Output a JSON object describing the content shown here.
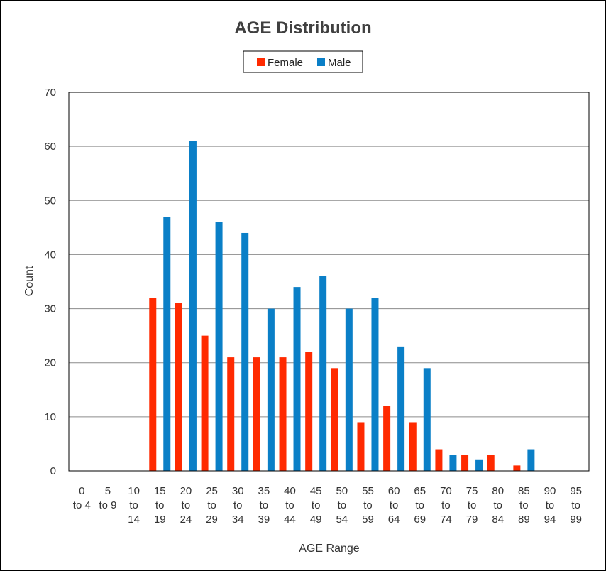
{
  "chart_data": {
    "type": "bar",
    "title": "AGE Distribution",
    "xlabel": "AGE Range",
    "ylabel": "Count",
    "ylim": [
      0,
      70
    ],
    "yticks": [
      0,
      10,
      20,
      30,
      40,
      50,
      60,
      70
    ],
    "grid": true,
    "legend_position": "top",
    "categories": [
      [
        "0",
        "to 4"
      ],
      [
        "5",
        "to 9"
      ],
      [
        "10",
        "to",
        "14"
      ],
      [
        "15",
        "to",
        "19"
      ],
      [
        "20",
        "to",
        "24"
      ],
      [
        "25",
        "to",
        "29"
      ],
      [
        "30",
        "to",
        "34"
      ],
      [
        "35",
        "to",
        "39"
      ],
      [
        "40",
        "to",
        "44"
      ],
      [
        "45",
        "to",
        "49"
      ],
      [
        "50",
        "to",
        "54"
      ],
      [
        "55",
        "to",
        "59"
      ],
      [
        "60",
        "to",
        "64"
      ],
      [
        "65",
        "to",
        "69"
      ],
      [
        "70",
        "to",
        "74"
      ],
      [
        "75",
        "to",
        "79"
      ],
      [
        "80",
        "to",
        "84"
      ],
      [
        "85",
        "to",
        "89"
      ],
      [
        "90",
        "to",
        "94"
      ],
      [
        "95",
        "to",
        "99"
      ]
    ],
    "series": [
      {
        "name": "Female",
        "color": "#ff2a00",
        "values": [
          0,
          0,
          0,
          32,
          31,
          25,
          21,
          21,
          21,
          22,
          19,
          9,
          12,
          9,
          4,
          3,
          3,
          1,
          0,
          0
        ]
      },
      {
        "name": "Male",
        "color": "#0a7fc7",
        "values": [
          0,
          0,
          0,
          47,
          61,
          46,
          44,
          30,
          34,
          36,
          30,
          32,
          23,
          19,
          3,
          2,
          0,
          4,
          0,
          0
        ]
      }
    ]
  }
}
